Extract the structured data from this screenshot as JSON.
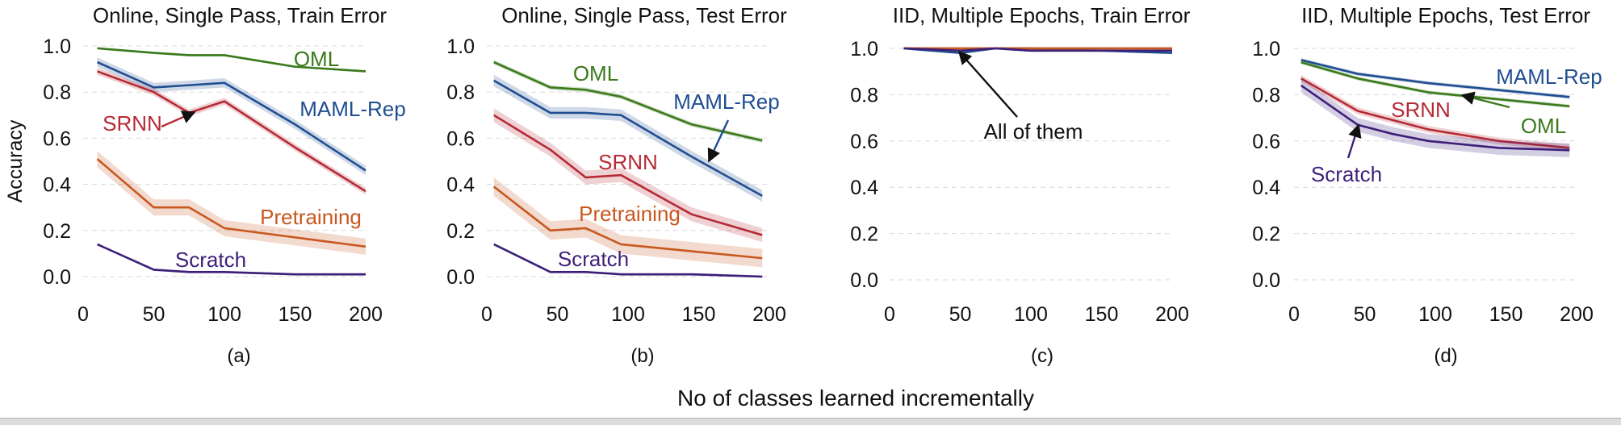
{
  "figure": {
    "xlabel": "No of classes learned incrementally",
    "colors": {
      "OML": "#3b7a1c",
      "MAML-Rep": "#1f4e91",
      "SRNN": "#b52a35",
      "Pretraining": "#c8581f",
      "Scratch": "#3d1f7a",
      "text": "#111111",
      "arrow": "#111111"
    }
  },
  "chart_data": [
    {
      "type": "line",
      "panel": "(a)",
      "title": "Online, Single Pass, Train Error",
      "ylabel": "Accuracy",
      "xlim": [
        0,
        200
      ],
      "ylim": [
        0,
        1.0
      ],
      "xticks": [
        "0",
        "50",
        "100",
        "150",
        "200"
      ],
      "yticks": [
        "0.0",
        "0.2",
        "0.4",
        "0.6",
        "0.8",
        "1.0"
      ],
      "series": [
        {
          "name": "OML",
          "x": [
            10,
            50,
            75,
            100,
            150,
            200
          ],
          "values": [
            0.99,
            0.97,
            0.96,
            0.96,
            0.91,
            0.89
          ],
          "band": 0.005
        },
        {
          "name": "MAML-Rep",
          "x": [
            10,
            50,
            75,
            100,
            150,
            200
          ],
          "values": [
            0.93,
            0.82,
            0.83,
            0.84,
            0.66,
            0.46
          ],
          "band": 0.02
        },
        {
          "name": "SRNN",
          "x": [
            10,
            50,
            75,
            100,
            150,
            200
          ],
          "values": [
            0.89,
            0.8,
            0.71,
            0.76,
            0.56,
            0.37
          ],
          "band": 0.015
        },
        {
          "name": "Pretraining",
          "x": [
            10,
            50,
            75,
            100,
            150,
            200
          ],
          "values": [
            0.51,
            0.3,
            0.3,
            0.21,
            0.17,
            0.13
          ],
          "band": 0.035
        },
        {
          "name": "Scratch",
          "x": [
            10,
            50,
            75,
            100,
            150,
            200
          ],
          "values": [
            0.14,
            0.03,
            0.02,
            0.02,
            0.01,
            0.01
          ],
          "band": 0.005
        }
      ],
      "annotations": [
        {
          "text": "OML",
          "series": "OML"
        },
        {
          "text": "MAML-Rep",
          "series": "MAML-Rep"
        },
        {
          "text": "SRNN",
          "series": "SRNN"
        },
        {
          "text": "Pretraining",
          "series": "Pretraining"
        },
        {
          "text": "Scratch",
          "series": "Scratch"
        }
      ]
    },
    {
      "type": "line",
      "panel": "(b)",
      "title": "Online, Single Pass, Test Error",
      "xlim": [
        0,
        200
      ],
      "ylim": [
        0,
        1.0
      ],
      "xticks": [
        "0",
        "50",
        "100",
        "150",
        "200"
      ],
      "yticks": [
        "0.0",
        "0.2",
        "0.4",
        "0.6",
        "0.8",
        "1.0"
      ],
      "series": [
        {
          "name": "OML",
          "x": [
            5,
            45,
            70,
            95,
            145,
            195
          ],
          "values": [
            0.93,
            0.82,
            0.81,
            0.78,
            0.66,
            0.59
          ],
          "band": 0.01
        },
        {
          "name": "MAML-Rep",
          "x": [
            5,
            45,
            70,
            95,
            145,
            195
          ],
          "values": [
            0.85,
            0.71,
            0.71,
            0.7,
            0.52,
            0.35
          ],
          "band": 0.025
        },
        {
          "name": "SRNN",
          "x": [
            5,
            45,
            70,
            95,
            145,
            195
          ],
          "values": [
            0.7,
            0.55,
            0.43,
            0.44,
            0.27,
            0.18
          ],
          "band": 0.03
        },
        {
          "name": "Pretraining",
          "x": [
            5,
            45,
            70,
            95,
            145,
            195
          ],
          "values": [
            0.39,
            0.2,
            0.21,
            0.14,
            0.11,
            0.08
          ],
          "band": 0.04
        },
        {
          "name": "Scratch",
          "x": [
            5,
            45,
            70,
            95,
            145,
            195
          ],
          "values": [
            0.14,
            0.02,
            0.02,
            0.01,
            0.01,
            0.0
          ],
          "band": 0.005
        }
      ],
      "annotations": [
        {
          "text": "OML",
          "series": "OML"
        },
        {
          "text": "MAML-Rep",
          "series": "MAML-Rep"
        },
        {
          "text": "SRNN",
          "series": "SRNN"
        },
        {
          "text": "Pretraining",
          "series": "Pretraining"
        },
        {
          "text": "Scratch",
          "series": "Scratch"
        }
      ]
    },
    {
      "type": "line",
      "panel": "(c)",
      "title": "IID, Multiple Epochs, Train Error",
      "xlim": [
        0,
        200
      ],
      "ylim": [
        0,
        1.0
      ],
      "xticks": [
        "0",
        "50",
        "100",
        "150",
        "200"
      ],
      "yticks": [
        "0.0",
        "0.2",
        "0.4",
        "0.6",
        "0.8",
        "1.0"
      ],
      "series": [
        {
          "name": "OML",
          "x": [
            10,
            50,
            75,
            100,
            150,
            200
          ],
          "values": [
            1.0,
            0.99,
            1.0,
            1.0,
            0.99,
            0.99
          ],
          "band": 0
        },
        {
          "name": "MAML-Rep",
          "x": [
            10,
            50,
            75,
            100,
            150,
            200
          ],
          "values": [
            1.0,
            0.98,
            1.0,
            0.99,
            0.99,
            0.98
          ],
          "band": 0
        },
        {
          "name": "SRNN",
          "x": [
            10,
            50,
            75,
            100,
            150,
            200
          ],
          "values": [
            1.0,
            1.0,
            1.0,
            1.0,
            1.0,
            1.0
          ],
          "band": 0
        },
        {
          "name": "Pretraining",
          "x": [
            10,
            50,
            75,
            100,
            150,
            200
          ],
          "values": [
            1.0,
            1.0,
            1.0,
            1.0,
            1.0,
            1.0
          ],
          "band": 0
        },
        {
          "name": "Scratch",
          "x": [
            10,
            50,
            75,
            100,
            150,
            200
          ],
          "values": [
            1.0,
            0.99,
            1.0,
            0.99,
            0.99,
            0.99
          ],
          "band": 0
        }
      ],
      "annotations": [
        {
          "text": "All of them",
          "series": "all"
        }
      ]
    },
    {
      "type": "line",
      "panel": "(d)",
      "title": "IID, Multiple Epochs, Test Error",
      "xlim": [
        0,
        200
      ],
      "ylim": [
        0,
        1.0
      ],
      "xticks": [
        "0",
        "50",
        "100",
        "150",
        "200"
      ],
      "yticks": [
        "0.0",
        "0.2",
        "0.4",
        "0.6",
        "0.8",
        "1.0"
      ],
      "series": [
        {
          "name": "MAML-Rep",
          "x": [
            5,
            45,
            70,
            95,
            145,
            195
          ],
          "values": [
            0.95,
            0.89,
            0.87,
            0.85,
            0.82,
            0.79
          ],
          "band": 0.008
        },
        {
          "name": "OML",
          "x": [
            5,
            45,
            70,
            95,
            145,
            195
          ],
          "values": [
            0.94,
            0.87,
            0.84,
            0.81,
            0.78,
            0.75
          ],
          "band": 0.008
        },
        {
          "name": "SRNN",
          "x": [
            5,
            45,
            70,
            95,
            145,
            195
          ],
          "values": [
            0.87,
            0.73,
            0.69,
            0.65,
            0.6,
            0.57
          ],
          "band": 0.015
        },
        {
          "name": "Scratch",
          "x": [
            5,
            45,
            70,
            95,
            145,
            195
          ],
          "values": [
            0.84,
            0.67,
            0.63,
            0.6,
            0.57,
            0.56
          ],
          "band": 0.03
        }
      ],
      "annotations": [
        {
          "text": "MAML-Rep",
          "series": "MAML-Rep"
        },
        {
          "text": "SRNN",
          "series": "SRNN"
        },
        {
          "text": "OML",
          "series": "OML"
        },
        {
          "text": "Scratch",
          "series": "Scratch"
        }
      ]
    }
  ]
}
